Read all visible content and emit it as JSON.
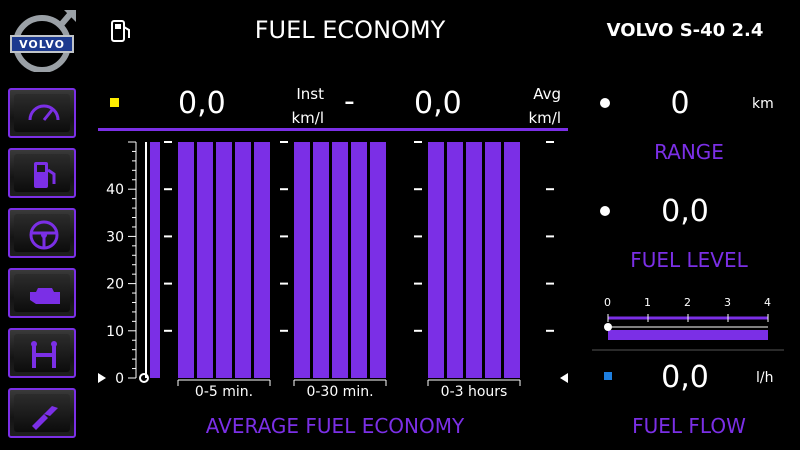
{
  "header": {
    "title": "FUEL ECONOMY",
    "car_model": "VOLVO S-40 2.4"
  },
  "logo": {
    "text": "VOLVO"
  },
  "sidebar": {
    "items": [
      {
        "name": "gauge-icon"
      },
      {
        "name": "fuel-pump-icon"
      },
      {
        "name": "steering-wheel-icon"
      },
      {
        "name": "engine-icon"
      },
      {
        "name": "suspension-icon"
      },
      {
        "name": "nozzle-icon"
      }
    ]
  },
  "economy": {
    "inst_value": "0,0",
    "inst_label": "Inst",
    "inst_unit": "km/l",
    "separator": "-",
    "avg_value": "0,0",
    "avg_label": "Avg",
    "avg_unit": "km/l",
    "indicator_color": "#ffee00"
  },
  "chart": {
    "title": "AVERAGE FUEL ECONOMY",
    "y_ticks": [
      "0",
      "10",
      "20",
      "30",
      "40"
    ],
    "group_labels": [
      "0-5 min.",
      "0-30 min.",
      "0-3 hours"
    ],
    "bar_color": "#7b2fe6"
  },
  "range": {
    "value": "0",
    "unit": "km",
    "label": "RANGE"
  },
  "fuel_level": {
    "value": "0,0",
    "label": "FUEL LEVEL",
    "scale": [
      "0",
      "1",
      "2",
      "3",
      "4"
    ]
  },
  "fuel_flow": {
    "value": "0,0",
    "unit": "l/h",
    "label": "FUEL FLOW",
    "indicator_color": "#1e7fe0"
  },
  "chart_data": {
    "type": "bar",
    "title": "AVERAGE FUEL ECONOMY",
    "xlabel": "",
    "ylabel": "",
    "ylim": [
      0,
      50
    ],
    "y_ticks": [
      0,
      10,
      20,
      30,
      40
    ],
    "categories": [
      "0-5 min.",
      "0-30 min.",
      "0-3 hours"
    ],
    "series": [
      {
        "values": [
          50,
          50,
          50
        ]
      }
    ]
  }
}
